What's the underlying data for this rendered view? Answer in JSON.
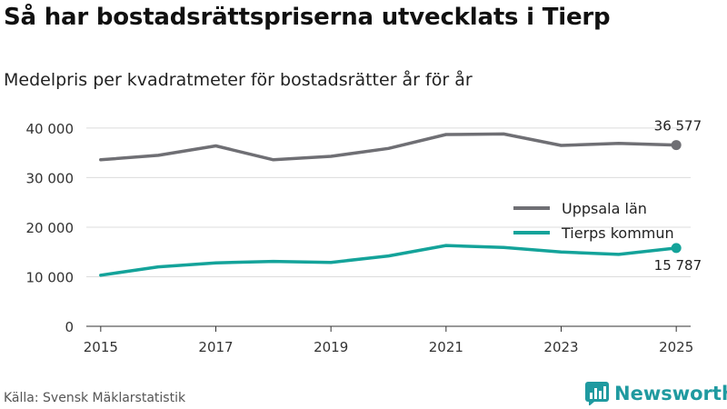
{
  "title": "Så har bostadsrättspriserna utvecklats i Tierp",
  "subtitle": "Medelpris per kvadratmeter för bostadsrätter år för år",
  "source": "Källa: Svensk Mäklarstatistik",
  "brand": {
    "name": "Newsworthy",
    "icon": "newsworthy-chart-icon",
    "color": "#1f9aa0"
  },
  "chart_data": {
    "type": "line",
    "title": "Så har bostadsrättspriserna utvecklats i Tierp",
    "subtitle": "Medelpris per kvadratmeter för bostadsrätter år för år",
    "xlabel": "",
    "ylabel": "",
    "x": [
      2015,
      2016,
      2017,
      2018,
      2019,
      2020,
      2021,
      2022,
      2023,
      2024,
      2025
    ],
    "xticks": [
      2015,
      2017,
      2019,
      2021,
      2023,
      2025
    ],
    "xtick_labels": [
      "2015",
      "2017",
      "2019",
      "2021",
      "2023",
      "2025"
    ],
    "xlim": [
      2014.75,
      2025.25
    ],
    "ylim": [
      0,
      42000
    ],
    "yticks": [
      0,
      10000,
      20000,
      30000,
      40000
    ],
    "ytick_labels": [
      "0",
      "10 000",
      "20 000",
      "30 000",
      "40 000"
    ],
    "grid": true,
    "legend_position": "right",
    "series": [
      {
        "name": "Uppsala län",
        "color": "#6f6f74",
        "values": [
          33600,
          34500,
          36400,
          33600,
          34300,
          35900,
          38700,
          38800,
          36500,
          36900,
          36577
        ],
        "end_label": "36 577"
      },
      {
        "name": "Tierps kommun",
        "color": "#14a39a",
        "values": [
          10300,
          12000,
          12800,
          13100,
          12900,
          14200,
          16300,
          15900,
          15000,
          14500,
          15787
        ],
        "end_label": "15 787"
      }
    ]
  }
}
